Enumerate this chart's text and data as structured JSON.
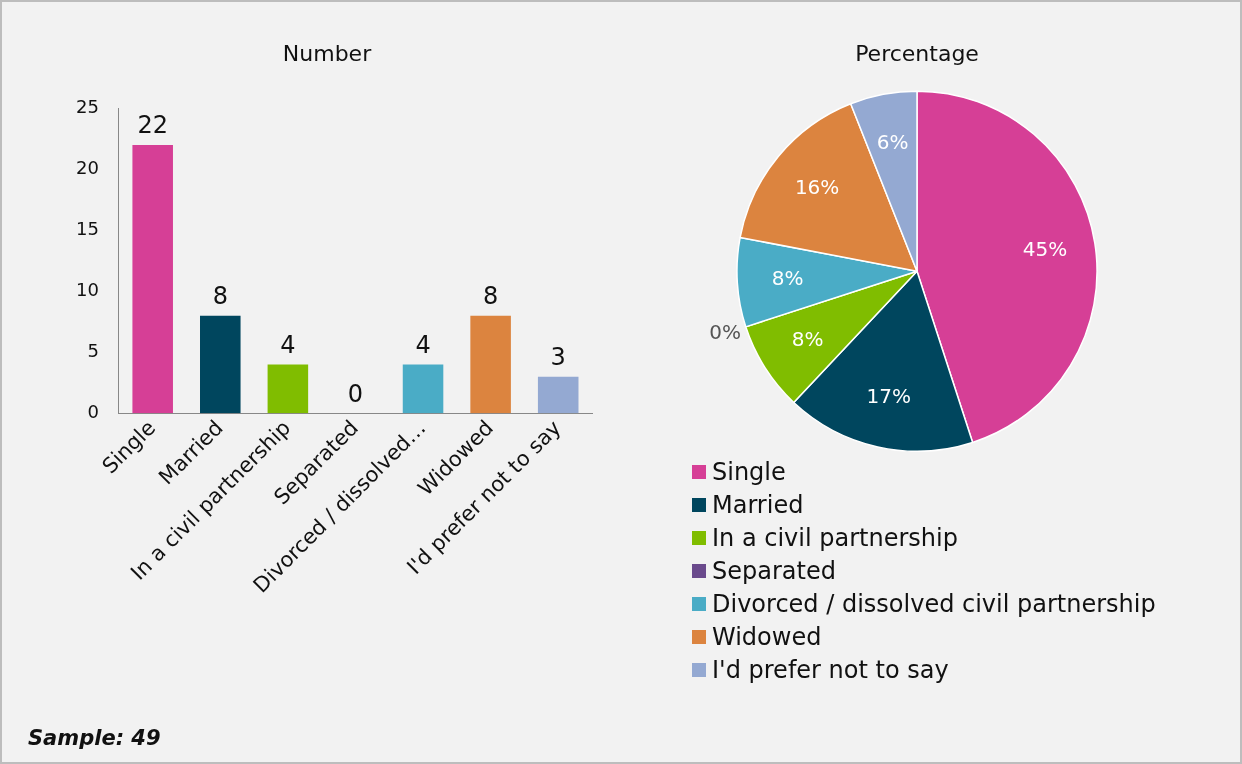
{
  "chart_data": [
    {
      "type": "bar",
      "title": "Number",
      "categories": [
        "Single",
        "Married",
        "In a civil partnership",
        "Separated",
        "Divorced / dissolved…",
        "Widowed",
        "I'd prefer not to say"
      ],
      "values": [
        22,
        8,
        4,
        0,
        4,
        8,
        3
      ],
      "colors": [
        "#d63f96",
        "#00465e",
        "#80bd00",
        "#6a4a8c",
        "#4aacc6",
        "#dc843f",
        "#94a9d2"
      ],
      "ylim": [
        0,
        25
      ],
      "yticks": [
        0,
        5,
        10,
        15,
        20,
        25
      ],
      "grid": false,
      "legend": false,
      "data_labels": true,
      "annotations": [
        "Sample: 49"
      ]
    },
    {
      "type": "pie",
      "title": "Percentage",
      "categories": [
        "Single",
        "Married",
        "In a civil partnership",
        "Separated",
        "Divorced / dissolved civil partnership",
        "Widowed",
        "I'd prefer not to say"
      ],
      "values": [
        45,
        17,
        8,
        0,
        8,
        16,
        6
      ],
      "colors": [
        "#d63f96",
        "#00465e",
        "#80bd00",
        "#6a4a8c",
        "#4aacc6",
        "#dc843f",
        "#94a9d2"
      ],
      "value_labels": [
        "45%",
        "17%",
        "8%",
        "0%",
        "8%",
        "16%",
        "6%"
      ],
      "legend": "bottom"
    }
  ]
}
